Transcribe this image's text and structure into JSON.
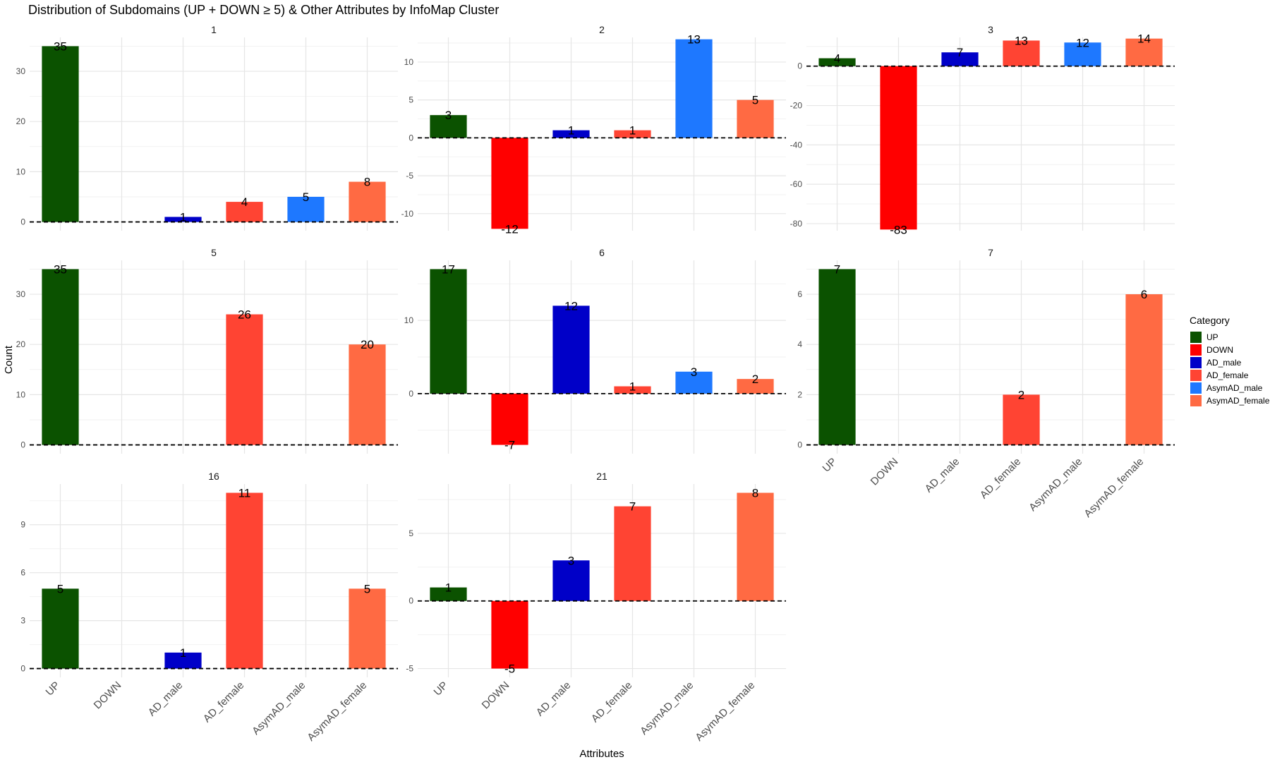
{
  "chart_data": {
    "type": "bar",
    "title": "Distribution of Subdomains (UP + DOWN ≥ 5) & Other Attributes by InfoMap Cluster",
    "xlabel": "Attributes",
    "ylabel": "Count",
    "categories": [
      "UP",
      "DOWN",
      "AD_male",
      "AD_female",
      "AsymAD_male",
      "AsymAD_female"
    ],
    "colors": {
      "UP": "#0b5200",
      "DOWN": "#ff0000",
      "AD_male": "#0000c8",
      "AD_female": "#ff4433",
      "AsymAD_male": "#1e78ff",
      "AsymAD_female": "#ff6a43"
    },
    "legend": {
      "title": "Category",
      "position": "right",
      "items": [
        "UP",
        "DOWN",
        "AD_male",
        "AD_female",
        "AsymAD_male",
        "AsymAD_female"
      ]
    },
    "zero_line": "dashed",
    "panels": [
      {
        "label": "1",
        "values": [
          35,
          0,
          1,
          4,
          5,
          8
        ],
        "ylim": [
          -1.75,
          36.75
        ],
        "yticks": [
          0,
          10,
          20,
          30
        ]
      },
      {
        "label": "2",
        "values": [
          3,
          -12,
          1,
          1,
          13,
          5
        ],
        "ylim": [
          -12.25,
          13.25
        ],
        "yticks": [
          -10,
          -5,
          0,
          5,
          10
        ]
      },
      {
        "label": "3",
        "values": [
          4,
          -83,
          7,
          13,
          12,
          14
        ],
        "ylim": [
          -83.6,
          14.6
        ],
        "yticks": [
          -80,
          -60,
          -40,
          -20,
          0
        ]
      },
      {
        "label": "5",
        "values": [
          35,
          0,
          0,
          26,
          0,
          20
        ],
        "ylim": [
          -1.75,
          36.75
        ],
        "yticks": [
          0,
          10,
          20,
          30
        ]
      },
      {
        "label": "6",
        "values": [
          17,
          -7,
          12,
          1,
          3,
          2
        ],
        "ylim": [
          -8.2,
          18.2
        ],
        "yticks": [
          0,
          10
        ]
      },
      {
        "label": "7",
        "values": [
          7,
          0,
          0,
          2,
          0,
          6
        ],
        "ylim": [
          -0.35,
          7.35
        ],
        "yticks": [
          0,
          2,
          4,
          6
        ]
      },
      {
        "label": "16",
        "values": [
          5,
          0,
          1,
          11,
          0,
          5
        ],
        "ylim": [
          -0.55,
          11.55
        ],
        "yticks": [
          0,
          3,
          6,
          9
        ]
      },
      {
        "label": "21",
        "values": [
          1,
          -5,
          3,
          7,
          0,
          8
        ],
        "ylim": [
          -5.65,
          8.65
        ],
        "yticks": [
          -5,
          0,
          5
        ]
      }
    ]
  }
}
